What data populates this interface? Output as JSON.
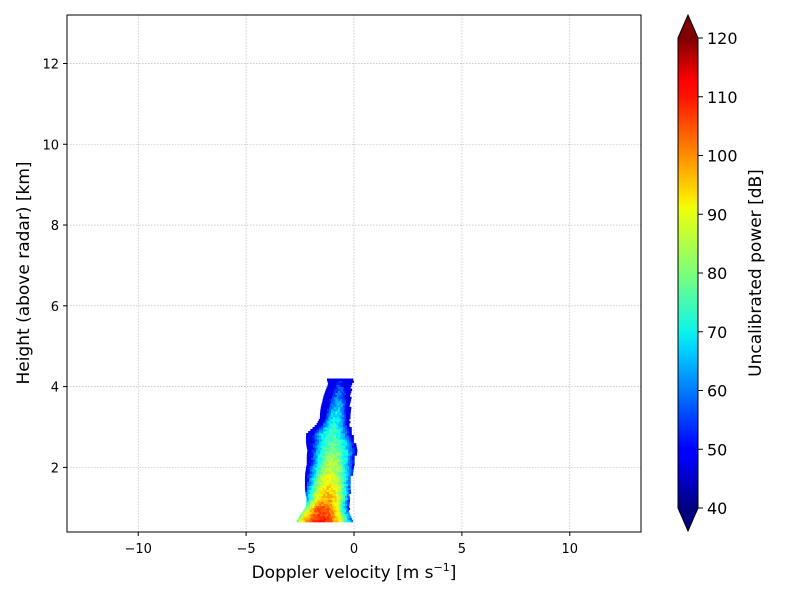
{
  "chart_data": {
    "type": "heatmap",
    "title": "",
    "xlabel": "Doppler velocity [m s",
    "xlabel_sup": "−1",
    "xlabel_end": "]",
    "ylabel": "Height (above radar) [km]",
    "xlim": [
      -13.3,
      13.3
    ],
    "ylim": [
      0.4,
      13.2
    ],
    "xticks": [
      -10,
      -5,
      0,
      5,
      10
    ],
    "xtick_labels": [
      "−10",
      "−5",
      "0",
      "5",
      "10"
    ],
    "yticks": [
      2,
      4,
      6,
      8,
      10,
      12
    ],
    "ytick_labels": [
      "2",
      "4",
      "6",
      "8",
      "10",
      "12"
    ],
    "grid": true,
    "colorbar": {
      "label": "Uncalibrated power [dB]",
      "range": [
        40,
        120
      ],
      "ticks": [
        40,
        50,
        60,
        70,
        80,
        90,
        100,
        110,
        120
      ],
      "tick_labels": [
        "40",
        "50",
        "60",
        "70",
        "80",
        "90",
        "100",
        "110",
        "120"
      ],
      "colormap": "jet",
      "extend": "both"
    },
    "spectrum_profile": [
      {
        "h": 0.65,
        "vmin": -2.5,
        "vmax": -0.2,
        "peak_v": -1.6,
        "peak_db": 108
      },
      {
        "h": 0.9,
        "vmin": -2.3,
        "vmax": -0.3,
        "peak_v": -1.5,
        "peak_db": 105
      },
      {
        "h": 1.2,
        "vmin": -2.1,
        "vmax": -0.3,
        "peak_v": -1.3,
        "peak_db": 97
      },
      {
        "h": 1.6,
        "vmin": -2.1,
        "vmax": -0.3,
        "peak_v": -1.2,
        "peak_db": 90
      },
      {
        "h": 2.0,
        "vmin": -2.2,
        "vmax": -0.1,
        "peak_v": -1.1,
        "peak_db": 84
      },
      {
        "h": 2.4,
        "vmin": -2.0,
        "vmax": 0.0,
        "peak_v": -1.0,
        "peak_db": 80
      },
      {
        "h": 2.8,
        "vmin": -2.1,
        "vmax": -0.2,
        "peak_v": -1.1,
        "peak_db": 75
      },
      {
        "h": 3.2,
        "vmin": -1.5,
        "vmax": -0.3,
        "peak_v": -0.9,
        "peak_db": 70
      },
      {
        "h": 3.6,
        "vmin": -1.3,
        "vmax": -0.3,
        "peak_v": -0.8,
        "peak_db": 63
      },
      {
        "h": 4.0,
        "vmin": -1.2,
        "vmax": -0.2,
        "peak_v": -0.7,
        "peak_db": 55
      },
      {
        "h": 4.15,
        "vmin": -1.2,
        "vmax": -0.1,
        "peak_v": -0.7,
        "peak_db": 48
      }
    ]
  }
}
